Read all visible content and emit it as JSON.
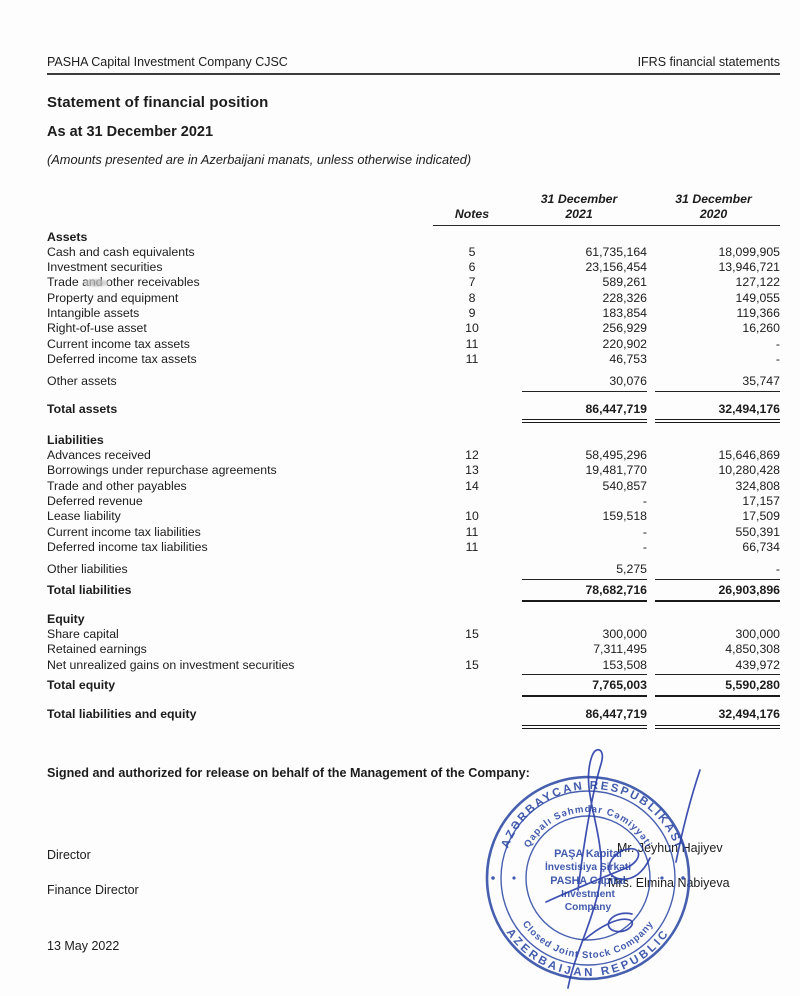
{
  "page_header": {
    "left": "PASHA Capital Investment Company CJSC",
    "right": "IFRS financial statements"
  },
  "doc": {
    "title": "Statement of financial position",
    "subtitle": "As at 31 December 2021",
    "amounts_note": "(Amounts presented are in Azerbaijani manats, unless otherwise indicated)"
  },
  "table": {
    "headers": {
      "notes": "Notes",
      "col2021_line1": "31 December",
      "col2021_line2": "2021",
      "col2020_line1": "31 December",
      "col2020_line2": "2020"
    },
    "sections": [
      {
        "heading": "Assets",
        "space_before": false,
        "rows": [
          {
            "label": "Cash and cash equivalents",
            "note": "5",
            "v2021": "61,735,164",
            "v2020": "18,099,905"
          },
          {
            "label": "Investment securities",
            "note": "6",
            "v2021": "23,156,454",
            "v2020": "13,946,721"
          },
          {
            "label": "Trade and other receivables",
            "note": "7",
            "v2021": "589,261",
            "v2020": "127,122",
            "smudge": true
          },
          {
            "label": "Property and equipment",
            "note": "8",
            "v2021": "228,326",
            "v2020": "149,055"
          },
          {
            "label": "Intangible assets",
            "note": "9",
            "v2021": "183,854",
            "v2020": "119,366"
          },
          {
            "label": "Right-of-use asset",
            "note": "10",
            "v2021": "256,929",
            "v2020": "16,260"
          },
          {
            "label": "Current income tax assets",
            "note": "11",
            "v2021": "220,902",
            "v2020": "-"
          },
          {
            "label": "Deferred income tax assets",
            "note": "11",
            "v2021": "46,753",
            "v2020": "-"
          },
          {
            "label": "Other assets",
            "note": "",
            "v2021": "30,076",
            "v2020": "35,747",
            "underline": "single",
            "space_before": true
          },
          {
            "label": "Total assets",
            "note": "",
            "v2021": "86,447,719",
            "v2020": "32,494,176",
            "bold": true,
            "underline": "double",
            "space_before": true
          }
        ]
      },
      {
        "heading": "Liabilities",
        "space_before": true,
        "rows": [
          {
            "label": "Advances received",
            "note": "12",
            "v2021": "58,495,296",
            "v2020": "15,646,869"
          },
          {
            "label": "Borrowings under repurchase agreements",
            "note": "13",
            "v2021": "19,481,770",
            "v2020": "10,280,428"
          },
          {
            "label": "Trade and other payables",
            "note": "14",
            "v2021": "540,857",
            "v2020": "324,808"
          },
          {
            "label": "Deferred revenue",
            "note": "",
            "v2021": "-",
            "v2020": "17,157"
          },
          {
            "label": "Lease liability",
            "note": "10",
            "v2021": "159,518",
            "v2020": "17,509"
          },
          {
            "label": "Current income tax liabilities",
            "note": "11",
            "v2021": "-",
            "v2020": "550,391"
          },
          {
            "label": "Deferred income tax liabilities",
            "note": "11",
            "v2021": "-",
            "v2020": "66,734"
          },
          {
            "label": "Other liabilities",
            "note": "",
            "v2021": "5,275",
            "v2020": "-",
            "underline": "single",
            "space_before": true
          },
          {
            "label": "Total liabilities",
            "note": "",
            "v2021": "78,682,716",
            "v2020": "26,903,896",
            "bold": true,
            "underline": "thick"
          }
        ]
      },
      {
        "heading": "Equity",
        "space_before": true,
        "rows": [
          {
            "label": "Share capital",
            "note": "15",
            "v2021": "300,000",
            "v2020": "300,000"
          },
          {
            "label": "Retained earnings",
            "note": "",
            "v2021": "7,311,495",
            "v2020": "4,850,308"
          },
          {
            "label": "Net unrealized gains on investment securities",
            "note": "15",
            "v2021": "153,508",
            "v2020": "439,972",
            "underline": "single"
          },
          {
            "label": "Total equity",
            "note": "",
            "v2021": "7,765,003",
            "v2020": "5,590,280",
            "bold": true,
            "underline": "thick"
          }
        ]
      }
    ],
    "grand_total": {
      "label": "Total liabilities and equity",
      "note": "",
      "v2021": "86,447,719",
      "v2020": "32,494,176",
      "bold": true,
      "underline": "double",
      "space_before": true
    }
  },
  "signature": {
    "heading": "Signed and authorized for release on behalf of the Management of the Company:",
    "director_title": "Director",
    "director_name": "Mr. Jeyhun Hajiyev",
    "finance_title": "Finance Director",
    "finance_name": "Mrs. Elmina Nabiyeva",
    "date": "13 May 2022",
    "stamp": {
      "outer_top": "AZƏRBAYCAN RESPUBLİKASI",
      "outer_bottom": "AZERBAIJAN REPUBLIC",
      "inner_top": "Qapalı Səhmdar Cəmiyyəti",
      "inner_bottom": "Closed Joint Stock Company",
      "center_line1": "PAŞA Kapital",
      "center_line2": "İnvestisiya Şirkəti",
      "center_line3": "PASHA Capital",
      "center_line4": "Investment",
      "center_line5": "Company",
      "ink_color": "#2e4aa5"
    }
  }
}
